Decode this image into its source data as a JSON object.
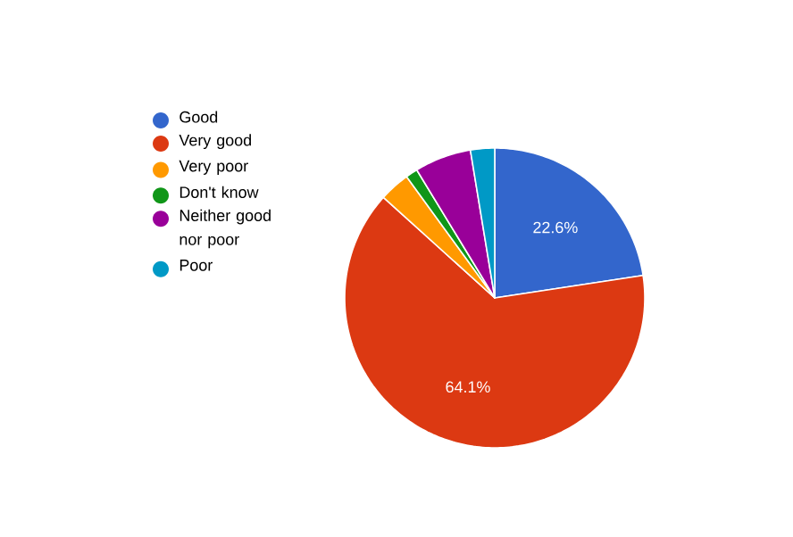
{
  "chart_data": {
    "type": "pie",
    "categories": [
      "Good",
      "Very good",
      "Very poor",
      "Don't know",
      "Neither good nor poor",
      "Poor"
    ],
    "values": [
      22.6,
      64.1,
      3.3,
      1.3,
      6.1,
      2.6
    ],
    "colors": [
      "#3366cc",
      "#dc3912",
      "#ff9900",
      "#109618",
      "#990099",
      "#0099c6"
    ],
    "value_labels": [
      "22.6%",
      "64.1%",
      null,
      null,
      null,
      null
    ],
    "legend": "left"
  }
}
